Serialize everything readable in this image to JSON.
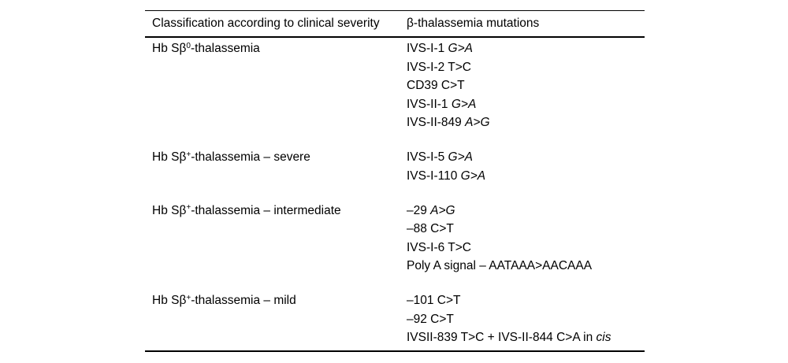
{
  "table": {
    "headers": [
      "Classification according to clinical severity",
      "β-thalassemia mutations"
    ],
    "groups": [
      {
        "label": "Hb Sβ^{0}-thalassemia",
        "mutations": [
          "IVS-I-1 *G>A*",
          "IVS-I-2 T>C",
          "CD39 C>T",
          "IVS-II-1 *G>A*",
          "IVS-II-849 *A>G*"
        ]
      },
      {
        "label": "Hb Sβ^{+}-thalassemia – severe",
        "mutations": [
          "IVS-I-5 *G>A*",
          "IVS-I-110 *G>A*"
        ]
      },
      {
        "label": "Hb Sβ^{+}-thalassemia – intermediate",
        "mutations": [
          "–29 *A>G*",
          "–88 C>T",
          "IVS-I-6 T>C",
          "Poly A signal – AATAAA>AACAAA"
        ]
      },
      {
        "label": "Hb Sβ^{+}-thalassemia – mild",
        "mutations": [
          "–101 C>T",
          "–92 C>T",
          "IVSII-839 T>C + IVS-II-844 C>A in *cis*"
        ]
      }
    ],
    "colors": {
      "text": "#000000",
      "background": "#ffffff",
      "rule": "#000000"
    }
  }
}
